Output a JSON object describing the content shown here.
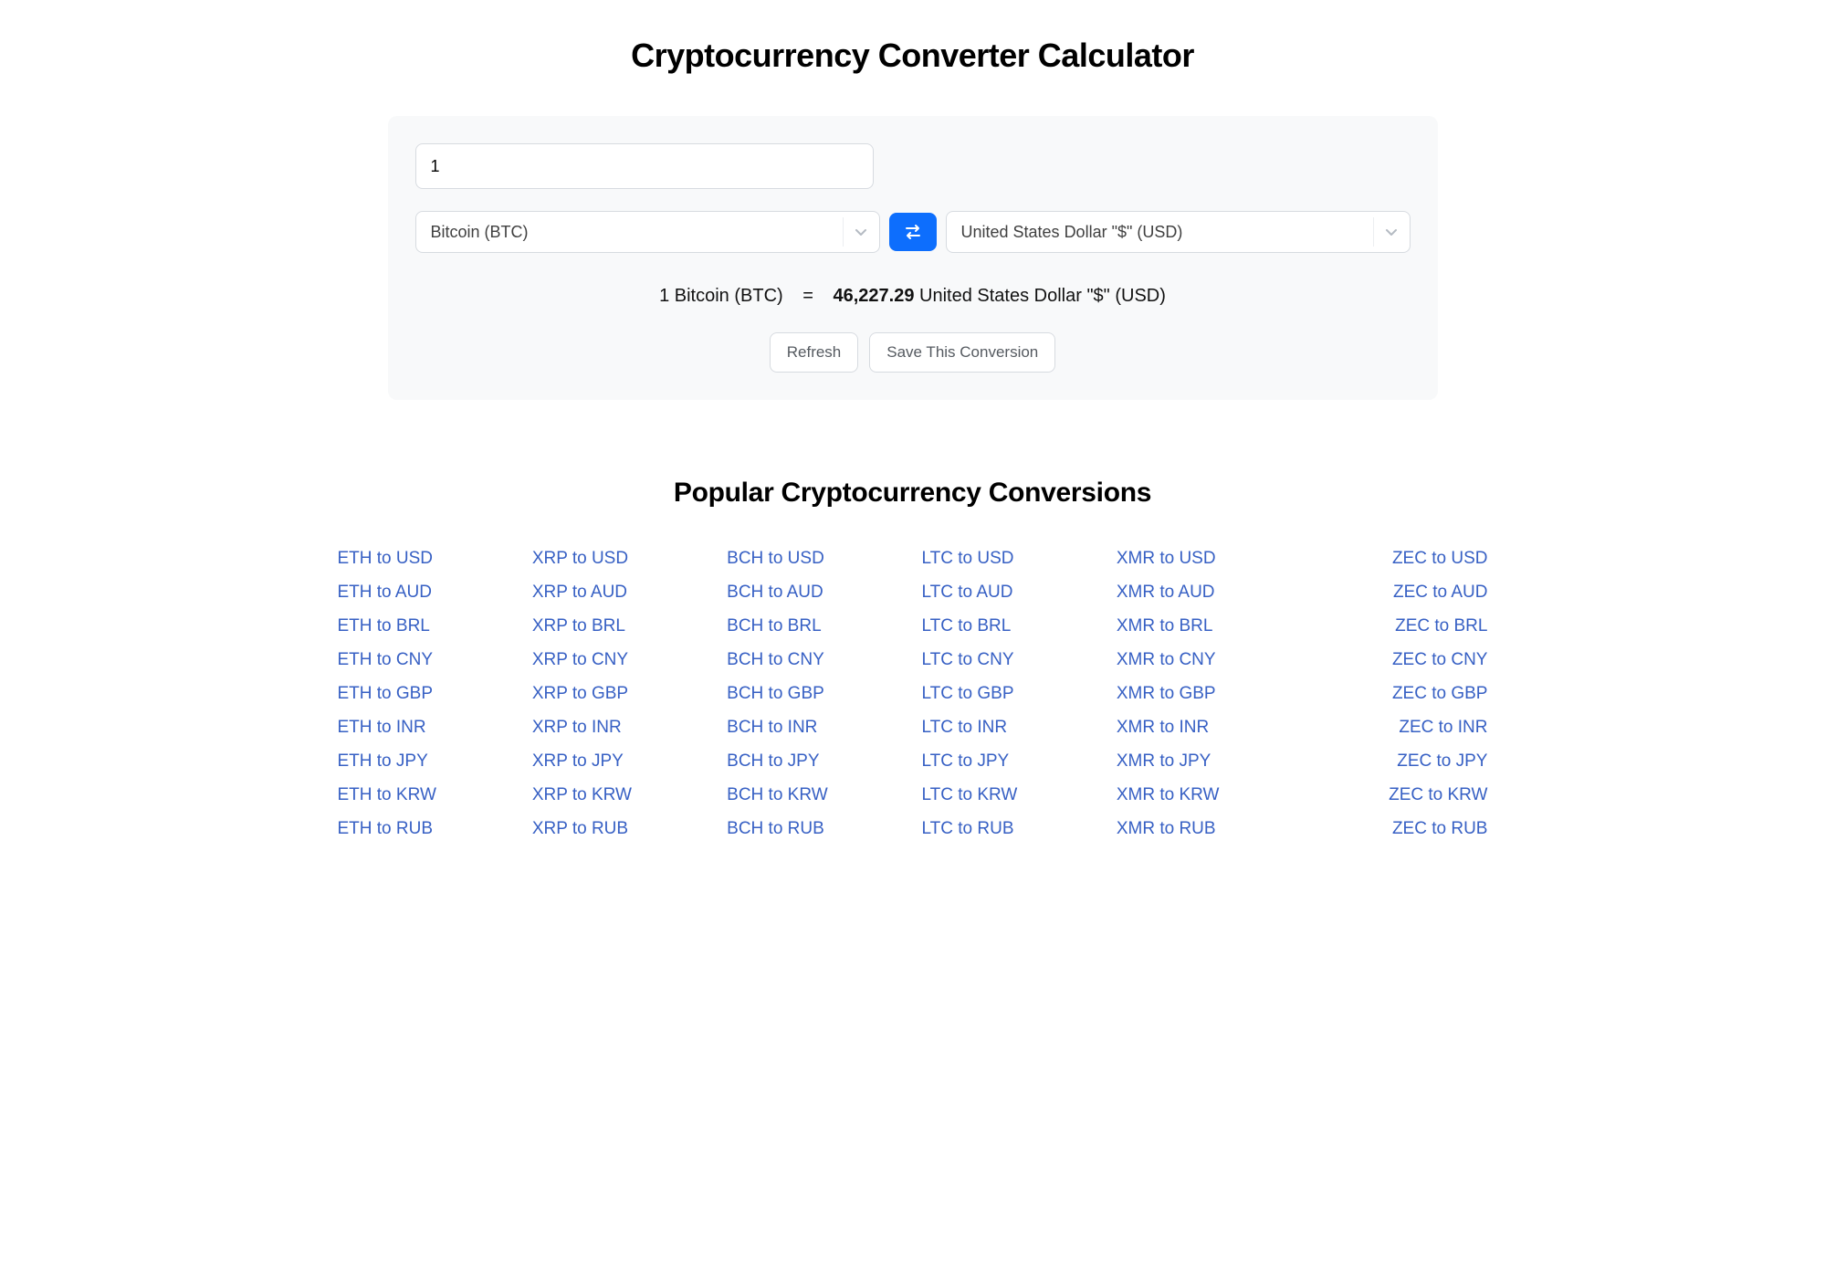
{
  "page": {
    "title": "Cryptocurrency Converter Calculator",
    "section_title": "Popular Cryptocurrency Conversions"
  },
  "converter": {
    "amount_value": "1",
    "from_currency": "Bitcoin (BTC)",
    "to_currency": "United States Dollar \"$\" (USD)",
    "result_left": "1 Bitcoin (BTC)",
    "equals": "=",
    "result_value": "46,227.29",
    "result_right": " United States Dollar \"$\" (USD)",
    "refresh_label": "Refresh",
    "save_label": "Save This Conversion"
  },
  "colors": {
    "card_bg": "#f8f9fa",
    "border": "#d7dbe0",
    "primary": "#0d6efd",
    "link": "#3760c4",
    "text": "#000000",
    "muted": "#555a60",
    "chevron": "#b4bac2"
  },
  "conversions": {
    "cryptos": [
      "ETH",
      "XRP",
      "BCH",
      "LTC",
      "XMR",
      "ZEC"
    ],
    "fiats": [
      "USD",
      "AUD",
      "BRL",
      "CNY",
      "GBP",
      "INR",
      "JPY",
      "KRW",
      "RUB"
    ]
  }
}
